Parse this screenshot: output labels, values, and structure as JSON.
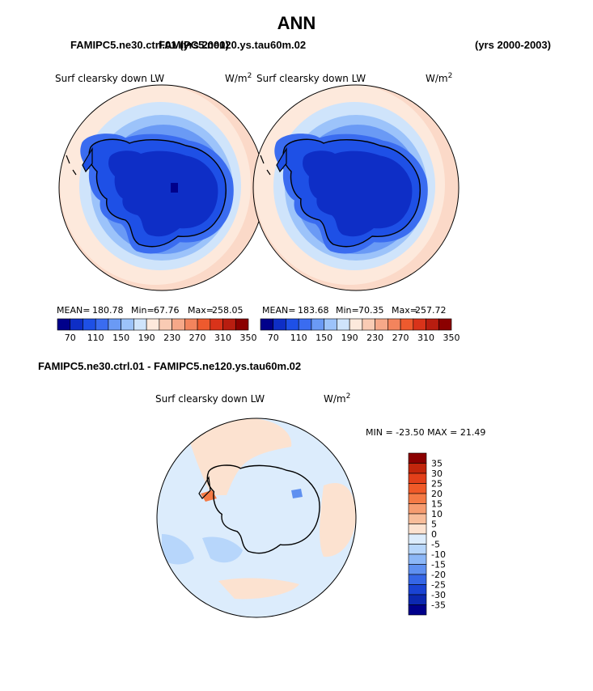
{
  "header": {
    "title": "ANN",
    "case1": "FAMIPC5.ne30.ctrl.01 (yrs 2000)",
    "case2": "FAMIPC5.ne120.ys.tau60m.02",
    "years2": "(yrs 2000-2003)",
    "diff_title": "FAMIPC5.ne30.ctrl.01 - FAMIPC5.ne120.ys.tau60m.02"
  },
  "panel1": {
    "variable": "Surf clearsky down LW",
    "units": "W/m",
    "units_sup": "2",
    "mean_label": "MEAN=",
    "mean": "180.78",
    "min_label": "Min=",
    "min": "67.76",
    "max_label": "Max=",
    "max": "258.05"
  },
  "panel2": {
    "variable": "Surf clearsky down LW",
    "units": "W/m",
    "units_sup": "2",
    "mean_label": "MEAN=",
    "mean": "183.68",
    "min_label": "Min=",
    "min": "70.35",
    "max_label": "Max=",
    "max": "257.72"
  },
  "panel3": {
    "variable": "Surf clearsky down LW",
    "units": "W/m",
    "units_sup": "2",
    "minmax": "MIN = -23.50 MAX =  21.49"
  },
  "colorbar_abs": {
    "colors": [
      "#00008b",
      "#0e2ec6",
      "#1e50e6",
      "#3a6cf0",
      "#6a9af5",
      "#9cc3fa",
      "#cfe4fb",
      "#fde9dc",
      "#f9cbb4",
      "#f6a889",
      "#f3845d",
      "#ee5a2e",
      "#d9331a",
      "#b81d10",
      "#8b0000"
    ],
    "labels": [
      "70",
      "110",
      "150",
      "190",
      "230",
      "270",
      "310",
      "350"
    ]
  },
  "colorbar_diff": {
    "colors": [
      "#8b0000",
      "#c2260c",
      "#e3401a",
      "#f05a28",
      "#f47a45",
      "#f69c70",
      "#f8bd9a",
      "#fce2d0",
      "#dcecfc",
      "#b7d6fb",
      "#8cb7f7",
      "#5f90f0",
      "#3566e6",
      "#1a43d3",
      "#0c28b0",
      "#00008b"
    ],
    "labels": [
      "35",
      "30",
      "25",
      "20",
      "15",
      "10",
      "5",
      "0",
      "-5",
      "-10",
      "-15",
      "-20",
      "-25",
      "-30",
      "-35"
    ]
  }
}
